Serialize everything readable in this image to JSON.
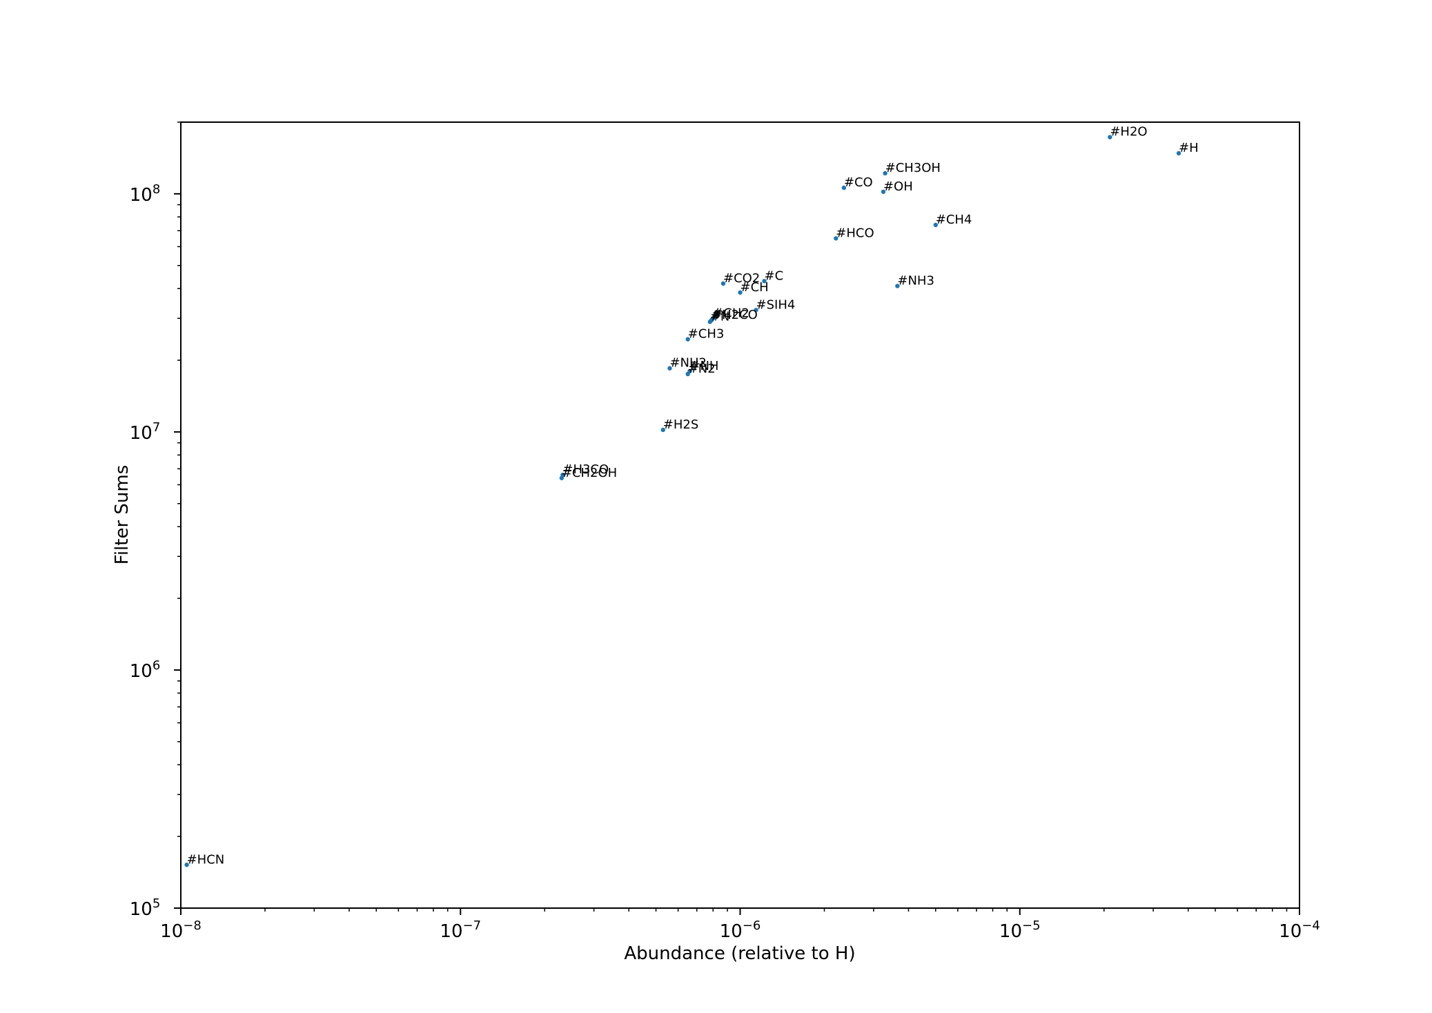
{
  "chart_data": {
    "type": "scatter",
    "title": "",
    "xlabel": "Abundance (relative to H)",
    "ylabel": "Filter Sums",
    "xscale": "log",
    "yscale": "log",
    "xlim": [
      1e-08,
      0.0001
    ],
    "ylim": [
      100000.0,
      200000000.0
    ],
    "grid": false,
    "legend": "none",
    "marker_color": "#1f77b4",
    "x_ticks": [
      {
        "value": 1e-08,
        "base": "10",
        "exp": "−8"
      },
      {
        "value": 1e-07,
        "base": "10",
        "exp": "−7"
      },
      {
        "value": 1e-06,
        "base": "10",
        "exp": "−6"
      },
      {
        "value": 1e-05,
        "base": "10",
        "exp": "−5"
      },
      {
        "value": 0.0001,
        "base": "10",
        "exp": "−4"
      }
    ],
    "y_ticks": [
      {
        "value": 100000.0,
        "base": "10",
        "exp": "5"
      },
      {
        "value": 1000000.0,
        "base": "10",
        "exp": "6"
      },
      {
        "value": 10000000.0,
        "base": "10",
        "exp": "7"
      },
      {
        "value": 100000000.0,
        "base": "10",
        "exp": "8"
      }
    ],
    "points": [
      {
        "label": "#H2O",
        "x": 2.1e-05,
        "y": 173000000.0
      },
      {
        "label": "#H",
        "x": 3.7e-05,
        "y": 148000000.0
      },
      {
        "label": "#CH3OH",
        "x": 3.3e-06,
        "y": 122000000.0
      },
      {
        "label": "#CO",
        "x": 2.35e-06,
        "y": 106000000.0
      },
      {
        "label": "#OH",
        "x": 3.25e-06,
        "y": 102000000.0
      },
      {
        "label": "#CH4",
        "x": 5e-06,
        "y": 74000000.0
      },
      {
        "label": "#HCO",
        "x": 2.2e-06,
        "y": 65000000.0
      },
      {
        "label": "#C",
        "x": 1.22e-06,
        "y": 43000000.0
      },
      {
        "label": "#CO2",
        "x": 8.7e-07,
        "y": 42000000.0
      },
      {
        "label": "#NH3",
        "x": 3.65e-06,
        "y": 41000000.0
      },
      {
        "label": "#CH",
        "x": 1e-06,
        "y": 38500000.0
      },
      {
        "label": "#SIH4",
        "x": 1.14e-06,
        "y": 32500000.0
      },
      {
        "label": "#CH2",
        "x": 8e-07,
        "y": 30000000.0
      },
      {
        "label": "#N",
        "x": 7.8e-07,
        "y": 29000000.0
      },
      {
        "label": "#H2CO",
        "x": 7.9e-07,
        "y": 29500000.0
      },
      {
        "label": "#CH3",
        "x": 6.5e-07,
        "y": 24500000.0
      },
      {
        "label": "#NH2",
        "x": 5.6e-07,
        "y": 18500000.0
      },
      {
        "label": "#NH",
        "x": 6.6e-07,
        "y": 18000000.0
      },
      {
        "label": "#N2",
        "x": 6.5e-07,
        "y": 17500000.0
      },
      {
        "label": "#H2S",
        "x": 5.3e-07,
        "y": 10200000.0
      },
      {
        "label": "#H3CO",
        "x": 2.32e-07,
        "y": 6600000.0
      },
      {
        "label": "#CH2OH",
        "x": 2.3e-07,
        "y": 6400000.0
      },
      {
        "label": "#HCN",
        "x": 1.05e-08,
        "y": 152000.0
      }
    ]
  }
}
